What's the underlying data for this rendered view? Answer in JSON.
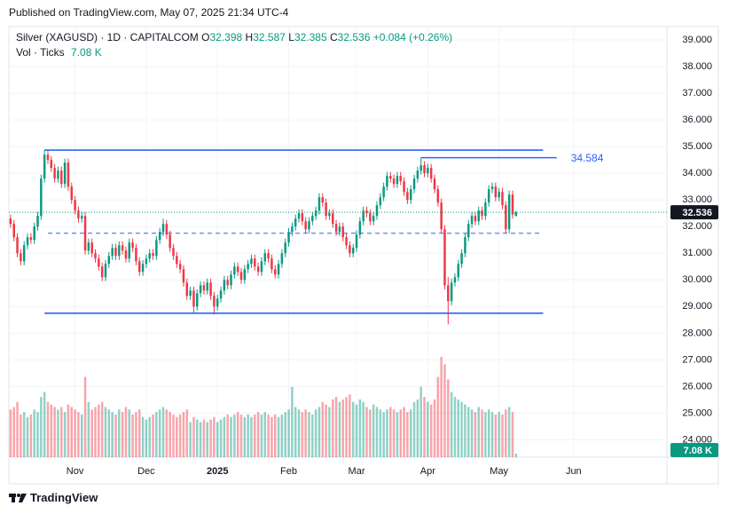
{
  "published": "Published on TradingView.com, May 07, 2025 21:34 UTC-4",
  "brand": "TradingView",
  "chart_data": {
    "type": "candlestick",
    "title": "Silver (XAGUSD) · 1D · CAPITALCOM",
    "ohlc_letters": [
      "O",
      "H",
      "L",
      "C"
    ],
    "change": "+0.084 (+0.26%)",
    "volume_title": "Vol · Ticks",
    "volume_last_label": "7.08 K",
    "up_color": "#089981",
    "down_color": "#f23645",
    "line_color": "#2962ff",
    "ylim": [
      23.35,
      39.5
    ],
    "yticks": [
      {
        "value": 24,
        "label": "24.000"
      },
      {
        "value": 25,
        "label": "25.000"
      },
      {
        "value": 26,
        "label": "26.000"
      },
      {
        "value": 27,
        "label": "27.000"
      },
      {
        "value": 28,
        "label": "28.000"
      },
      {
        "value": 29,
        "label": "29.000"
      },
      {
        "value": 30,
        "label": "30.000"
      },
      {
        "value": 31,
        "label": "31.000"
      },
      {
        "value": 32,
        "label": "32.000"
      },
      {
        "value": 33,
        "label": "33.000"
      },
      {
        "value": 34,
        "label": "34.000"
      },
      {
        "value": 35,
        "label": "35.000"
      },
      {
        "value": 36,
        "label": "36.000"
      },
      {
        "value": 37,
        "label": "37.000"
      },
      {
        "value": 38,
        "label": "38.000"
      },
      {
        "value": 39,
        "label": "39.000"
      }
    ],
    "xlim": [
      -0.5,
      193.5
    ],
    "xticks": [
      {
        "value": 19,
        "label": "Nov"
      },
      {
        "value": 40,
        "label": "Dec"
      },
      {
        "value": 61,
        "label": "2025"
      },
      {
        "value": 82,
        "label": "Feb"
      },
      {
        "value": 102,
        "label": "Mar"
      },
      {
        "value": 123,
        "label": "Apr"
      },
      {
        "value": 144,
        "label": "May"
      },
      {
        "value": 166,
        "label": "Jun"
      }
    ],
    "vlim": [
      0,
      230
    ],
    "grid": true,
    "lines": [
      {
        "value": 34.87,
        "start": 10,
        "end": 157,
        "style": "solid"
      },
      {
        "value": 34.584,
        "start": 121,
        "end": 161,
        "style": "solid"
      },
      {
        "value": 28.75,
        "start": 10,
        "end": 157,
        "style": "solid"
      },
      {
        "value": 31.75,
        "start": 11,
        "end": 156,
        "style": "dashed"
      }
    ],
    "labeled_line": 1,
    "candles": [
      [
        32.3,
        32.45,
        31.95,
        32.1,
        95
      ],
      [
        32.1,
        32.25,
        31.45,
        31.6,
        100
      ],
      [
        31.6,
        31.75,
        30.85,
        31.0,
        110
      ],
      [
        31.0,
        31.15,
        30.55,
        30.7,
        85
      ],
      [
        30.7,
        31.45,
        30.55,
        31.3,
        90
      ],
      [
        31.3,
        31.75,
        31.15,
        31.6,
        80
      ],
      [
        31.6,
        31.75,
        31.35,
        31.5,
        85
      ],
      [
        31.5,
        32.15,
        31.35,
        32.0,
        95
      ],
      [
        32.0,
        32.55,
        31.85,
        32.4,
        90
      ],
      [
        32.4,
        33.95,
        32.25,
        33.8,
        120
      ],
      [
        33.8,
        34.87,
        33.65,
        34.7,
        130
      ],
      [
        34.7,
        34.85,
        34.35,
        34.5,
        110
      ],
      [
        34.5,
        34.65,
        34.05,
        34.2,
        105
      ],
      [
        34.2,
        34.35,
        33.65,
        33.8,
        100
      ],
      [
        33.8,
        34.25,
        33.65,
        34.1,
        95
      ],
      [
        34.1,
        34.25,
        33.45,
        33.6,
        100
      ],
      [
        33.6,
        34.55,
        33.45,
        34.4,
        90
      ],
      [
        34.4,
        34.55,
        33.35,
        33.5,
        105
      ],
      [
        33.5,
        33.65,
        32.85,
        33.0,
        100
      ],
      [
        33.0,
        33.15,
        32.45,
        32.6,
        95
      ],
      [
        32.6,
        32.75,
        32.15,
        32.3,
        90
      ],
      [
        32.3,
        32.55,
        32.15,
        32.4,
        85
      ],
      [
        32.4,
        32.55,
        30.95,
        31.1,
        160
      ],
      [
        31.1,
        31.55,
        30.95,
        31.4,
        110
      ],
      [
        31.4,
        31.55,
        30.85,
        31.0,
        95
      ],
      [
        31.0,
        31.15,
        30.65,
        30.8,
        100
      ],
      [
        30.8,
        30.95,
        30.35,
        30.5,
        105
      ],
      [
        30.5,
        30.65,
        29.95,
        30.1,
        110
      ],
      [
        30.1,
        30.75,
        29.95,
        30.6,
        100
      ],
      [
        30.6,
        31.05,
        30.45,
        30.9,
        95
      ],
      [
        30.9,
        31.35,
        30.75,
        31.2,
        90
      ],
      [
        31.2,
        31.35,
        30.75,
        30.9,
        85
      ],
      [
        30.9,
        31.45,
        30.75,
        31.3,
        95
      ],
      [
        31.3,
        31.45,
        30.95,
        31.1,
        90
      ],
      [
        31.1,
        31.25,
        30.65,
        30.8,
        100
      ],
      [
        30.8,
        31.55,
        30.65,
        31.4,
        95
      ],
      [
        31.4,
        31.55,
        31.05,
        31.2,
        85
      ],
      [
        31.2,
        31.35,
        30.55,
        30.7,
        90
      ],
      [
        30.7,
        30.85,
        30.15,
        30.3,
        95
      ],
      [
        30.3,
        30.75,
        30.15,
        30.6,
        80
      ],
      [
        30.6,
        30.95,
        30.45,
        30.8,
        75
      ],
      [
        30.8,
        31.15,
        30.65,
        31.0,
        80
      ],
      [
        31.0,
        31.15,
        30.75,
        30.9,
        85
      ],
      [
        30.9,
        31.65,
        30.75,
        31.5,
        90
      ],
      [
        31.5,
        31.95,
        31.35,
        31.8,
        95
      ],
      [
        31.8,
        32.3,
        31.65,
        32.1,
        100
      ],
      [
        32.1,
        32.25,
        31.55,
        31.7,
        95
      ],
      [
        31.7,
        31.85,
        31.05,
        31.2,
        90
      ],
      [
        31.2,
        31.35,
        30.75,
        30.9,
        85
      ],
      [
        30.9,
        31.05,
        30.45,
        30.6,
        80
      ],
      [
        30.6,
        30.75,
        30.25,
        30.4,
        85
      ],
      [
        30.4,
        30.55,
        29.75,
        29.9,
        90
      ],
      [
        29.9,
        30.05,
        29.25,
        29.4,
        95
      ],
      [
        29.4,
        29.75,
        29.25,
        29.6,
        70
      ],
      [
        29.6,
        29.75,
        28.75,
        29.0,
        80
      ],
      [
        29.0,
        29.65,
        28.85,
        29.5,
        75
      ],
      [
        29.5,
        29.95,
        29.35,
        29.8,
        70
      ],
      [
        29.8,
        29.95,
        29.45,
        29.6,
        75
      ],
      [
        29.6,
        30.05,
        29.45,
        29.9,
        70
      ],
      [
        29.9,
        30.05,
        29.25,
        29.4,
        75
      ],
      [
        29.4,
        29.55,
        28.7,
        29.0,
        80
      ],
      [
        29.0,
        29.45,
        28.85,
        29.3,
        70
      ],
      [
        29.3,
        29.75,
        29.15,
        29.6,
        75
      ],
      [
        29.6,
        30.15,
        29.45,
        30.0,
        80
      ],
      [
        30.0,
        30.15,
        29.65,
        29.8,
        85
      ],
      [
        29.8,
        30.35,
        29.65,
        30.2,
        80
      ],
      [
        30.2,
        30.65,
        30.05,
        30.5,
        85
      ],
      [
        30.5,
        30.65,
        30.15,
        30.3,
        90
      ],
      [
        30.3,
        30.45,
        29.85,
        30.0,
        85
      ],
      [
        30.0,
        30.55,
        29.85,
        30.4,
        80
      ],
      [
        30.4,
        30.75,
        30.25,
        30.6,
        85
      ],
      [
        30.6,
        30.95,
        30.45,
        30.8,
        80
      ],
      [
        30.8,
        30.95,
        30.35,
        30.5,
        85
      ],
      [
        30.5,
        30.65,
        30.15,
        30.3,
        90
      ],
      [
        30.3,
        30.85,
        30.15,
        30.7,
        85
      ],
      [
        30.7,
        31.15,
        30.55,
        31.0,
        90
      ],
      [
        31.0,
        31.15,
        30.65,
        30.8,
        85
      ],
      [
        30.8,
        30.95,
        30.25,
        30.4,
        80
      ],
      [
        30.4,
        30.55,
        30.05,
        30.2,
        85
      ],
      [
        30.2,
        30.75,
        30.05,
        30.6,
        80
      ],
      [
        30.6,
        31.15,
        30.45,
        31.0,
        85
      ],
      [
        31.0,
        31.55,
        30.85,
        31.4,
        90
      ],
      [
        31.4,
        31.95,
        31.25,
        31.8,
        95
      ],
      [
        31.8,
        32.15,
        31.65,
        32.0,
        140
      ],
      [
        32.0,
        32.45,
        31.85,
        32.3,
        100
      ],
      [
        32.3,
        32.65,
        32.15,
        32.5,
        95
      ],
      [
        32.5,
        32.65,
        32.05,
        32.2,
        90
      ],
      [
        32.2,
        32.35,
        31.75,
        31.9,
        95
      ],
      [
        31.9,
        32.35,
        31.75,
        32.2,
        90
      ],
      [
        32.2,
        32.55,
        32.05,
        32.4,
        85
      ],
      [
        32.4,
        32.75,
        32.25,
        32.6,
        95
      ],
      [
        32.6,
        33.25,
        32.45,
        33.1,
        100
      ],
      [
        33.1,
        33.25,
        32.75,
        32.9,
        110
      ],
      [
        32.9,
        33.05,
        32.25,
        32.4,
        105
      ],
      [
        32.4,
        32.65,
        32.25,
        32.5,
        100
      ],
      [
        32.5,
        32.65,
        31.95,
        32.1,
        115
      ],
      [
        32.1,
        32.25,
        31.65,
        31.8,
        120
      ],
      [
        31.8,
        32.15,
        31.65,
        32.0,
        110
      ],
      [
        32.0,
        32.15,
        31.45,
        31.6,
        115
      ],
      [
        31.6,
        31.75,
        31.15,
        31.3,
        120
      ],
      [
        31.3,
        31.45,
        30.85,
        31.0,
        125
      ],
      [
        31.0,
        31.35,
        30.85,
        31.2,
        110
      ],
      [
        31.2,
        31.85,
        31.05,
        31.7,
        105
      ],
      [
        31.7,
        32.35,
        31.55,
        32.2,
        115
      ],
      [
        32.2,
        32.75,
        32.05,
        32.6,
        110
      ],
      [
        32.6,
        32.75,
        32.35,
        32.5,
        100
      ],
      [
        32.5,
        32.65,
        32.05,
        32.2,
        95
      ],
      [
        32.2,
        32.55,
        32.05,
        32.4,
        105
      ],
      [
        32.4,
        32.95,
        32.25,
        32.8,
        100
      ],
      [
        32.8,
        33.25,
        32.65,
        33.1,
        95
      ],
      [
        33.1,
        33.65,
        32.95,
        33.5,
        90
      ],
      [
        33.5,
        34.05,
        33.35,
        33.9,
        95
      ],
      [
        33.9,
        34.05,
        33.65,
        33.8,
        100
      ],
      [
        33.8,
        33.95,
        33.45,
        33.6,
        95
      ],
      [
        33.6,
        34.05,
        33.45,
        33.9,
        90
      ],
      [
        33.9,
        34.05,
        33.55,
        33.7,
        95
      ],
      [
        33.7,
        33.85,
        33.15,
        33.3,
        100
      ],
      [
        33.3,
        33.45,
        32.85,
        33.0,
        90
      ],
      [
        33.0,
        33.55,
        32.85,
        33.4,
        95
      ],
      [
        33.4,
        33.95,
        33.25,
        33.8,
        110
      ],
      [
        33.8,
        34.25,
        33.65,
        34.1,
        115
      ],
      [
        34.1,
        34.58,
        33.95,
        34.3,
        140
      ],
      [
        34.3,
        34.45,
        33.85,
        34.0,
        120
      ],
      [
        34.0,
        34.35,
        33.85,
        34.2,
        110
      ],
      [
        34.2,
        34.35,
        33.65,
        33.8,
        105
      ],
      [
        33.8,
        33.95,
        33.25,
        33.4,
        115
      ],
      [
        33.4,
        33.55,
        32.75,
        32.9,
        160
      ],
      [
        32.9,
        33.05,
        31.75,
        31.9,
        200
      ],
      [
        31.9,
        32.05,
        29.65,
        29.8,
        185
      ],
      [
        29.8,
        30.1,
        28.33,
        29.2,
        155
      ],
      [
        29.2,
        30.05,
        29.05,
        29.9,
        130
      ],
      [
        29.9,
        30.25,
        29.75,
        30.1,
        120
      ],
      [
        30.1,
        30.75,
        29.95,
        30.6,
        115
      ],
      [
        30.6,
        31.15,
        30.45,
        31.0,
        110
      ],
      [
        31.0,
        31.75,
        30.85,
        31.6,
        105
      ],
      [
        31.6,
        32.25,
        31.45,
        32.1,
        100
      ],
      [
        32.1,
        32.55,
        31.95,
        32.4,
        95
      ],
      [
        32.4,
        32.55,
        32.05,
        32.2,
        90
      ],
      [
        32.2,
        32.75,
        32.05,
        32.6,
        100
      ],
      [
        32.6,
        32.75,
        32.25,
        32.4,
        95
      ],
      [
        32.4,
        33.05,
        32.25,
        32.9,
        90
      ],
      [
        32.9,
        33.55,
        32.75,
        33.4,
        95
      ],
      [
        33.4,
        33.65,
        33.25,
        33.5,
        90
      ],
      [
        33.5,
        33.65,
        32.95,
        33.1,
        85
      ],
      [
        33.1,
        33.45,
        32.95,
        33.3,
        90
      ],
      [
        33.3,
        33.45,
        32.65,
        32.8,
        85
      ],
      [
        32.8,
        32.95,
        31.75,
        31.9,
        95
      ],
      [
        31.9,
        33.35,
        31.75,
        33.2,
        100
      ],
      [
        33.2,
        33.35,
        32.3,
        32.45,
        90
      ],
      [
        32.398,
        32.587,
        32.385,
        32.536,
        7.08
      ]
    ]
  }
}
